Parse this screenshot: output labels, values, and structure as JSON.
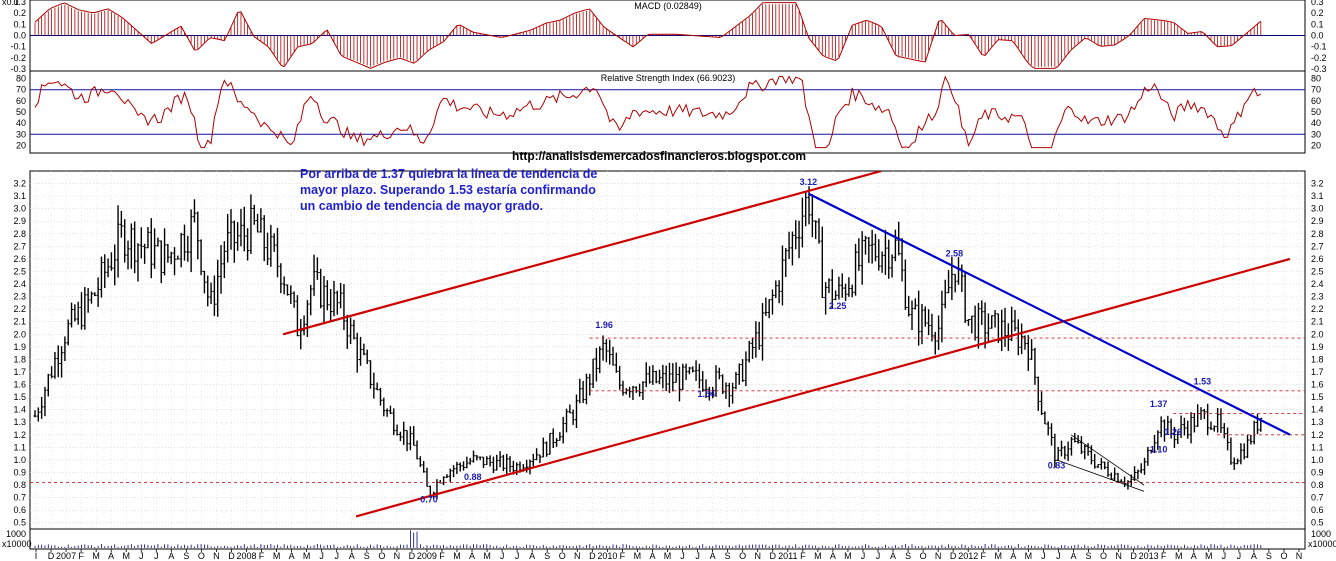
{
  "chart_data": [
    {
      "type": "bar",
      "title": "MACD (0.02849)",
      "y_ticks": [
        "0.3",
        "0.2",
        "0.1",
        "0.0",
        "-0.1",
        "-0.2",
        "-0.3"
      ],
      "ylim": [
        -0.3,
        0.3
      ],
      "zero_line": 0.0,
      "color": "#b00000"
    },
    {
      "type": "line",
      "title": "Relative Strength Index (66.9023)",
      "y_ticks": [
        "80",
        "70",
        "60",
        "50",
        "40",
        "30",
        "20"
      ],
      "ylim": [
        15,
        85
      ],
      "reference_lines": [
        70,
        30
      ],
      "reference_line_color": "#1010a0",
      "color": "#b00000"
    },
    {
      "type": "line",
      "subtype": "price bars",
      "ylim": [
        0.45,
        3.3
      ],
      "y_ticks": [
        "3.2",
        "3.1",
        "3.0",
        "2.9",
        "2.8",
        "2.7",
        "2.6",
        "2.5",
        "2.4",
        "2.3",
        "2.2",
        "2.1",
        "2.0",
        "1.9",
        "1.8",
        "1.7",
        "1.6",
        "1.5",
        "1.4",
        "1.3",
        "1.2",
        "1.1",
        "1.0",
        "0.9",
        "0.8",
        "0.7",
        "0.6",
        "0.5"
      ],
      "anchor_points": [
        {
          "x": "2006-09",
          "y": 1.35
        },
        {
          "x": "2006-11",
          "y": 2.0
        },
        {
          "x": "2007-01",
          "y": 2.3
        },
        {
          "x": "2007-03",
          "y": 2.8
        },
        {
          "x": "2007-06",
          "y": 2.6
        },
        {
          "x": "2007-08",
          "y": 2.9
        },
        {
          "x": "2007-09",
          "y": 2.2
        },
        {
          "x": "2007-10",
          "y": 2.7
        },
        {
          "x": "2007-12",
          "y": 2.85
        },
        {
          "x": "2008-02",
          "y": 2.5
        },
        {
          "x": "2008-03",
          "y": 2.05
        },
        {
          "x": "2008-04",
          "y": 2.4
        },
        {
          "x": "2008-06",
          "y": 2.2
        },
        {
          "x": "2008-07",
          "y": 1.9
        },
        {
          "x": "2008-09",
          "y": 1.4
        },
        {
          "x": "2008-11",
          "y": 1.1
        },
        {
          "x": "2008-12",
          "y": 0.72
        },
        {
          "x": "2009-01",
          "y": 0.9
        },
        {
          "x": "2009-03",
          "y": 1.0
        },
        {
          "x": "2009-06",
          "y": 0.95
        },
        {
          "x": "2009-08",
          "y": 1.1
        },
        {
          "x": "2009-10",
          "y": 1.4
        },
        {
          "x": "2009-12",
          "y": 1.9
        },
        {
          "x": "2010-01",
          "y": 1.6
        },
        {
          "x": "2010-06",
          "y": 1.65
        },
        {
          "x": "2010-09",
          "y": 1.6
        },
        {
          "x": "2010-11",
          "y": 2.1
        },
        {
          "x": "2011-01",
          "y": 2.8
        },
        {
          "x": "2011-02",
          "y": 3.1
        },
        {
          "x": "2011-03",
          "y": 2.4
        },
        {
          "x": "2011-04",
          "y": 2.3
        },
        {
          "x": "2011-06",
          "y": 2.65
        },
        {
          "x": "2011-08",
          "y": 2.7
        },
        {
          "x": "2011-09",
          "y": 2.15
        },
        {
          "x": "2011-11",
          "y": 2.05
        },
        {
          "x": "2011-12",
          "y": 2.58
        },
        {
          "x": "2012-01",
          "y": 2.1
        },
        {
          "x": "2012-03",
          "y": 2.05
        },
        {
          "x": "2012-05",
          "y": 1.95
        },
        {
          "x": "2012-06",
          "y": 1.4
        },
        {
          "x": "2012-07",
          "y": 1.0
        },
        {
          "x": "2012-08",
          "y": 1.15
        },
        {
          "x": "2012-10",
          "y": 0.95
        },
        {
          "x": "2012-12",
          "y": 0.82
        },
        {
          "x": "2013-01",
          "y": 0.95
        },
        {
          "x": "2013-02",
          "y": 1.3
        },
        {
          "x": "2013-03",
          "y": 1.2
        },
        {
          "x": "2013-05",
          "y": 1.35
        },
        {
          "x": "2013-06",
          "y": 1.3
        },
        {
          "x": "2013-07",
          "y": 1.0
        },
        {
          "x": "2013-08",
          "y": 1.1
        },
        {
          "x": "2013-09",
          "y": 1.35
        }
      ],
      "annotations": [
        "3.12",
        "2.58",
        "2.25",
        "1.96",
        "1.54",
        "1.53",
        "1.37",
        "1.26",
        "1.10",
        "0.83",
        "0.88",
        "0.70"
      ],
      "horizontal_levels": [
        1.97,
        1.55,
        1.37,
        1.2,
        0.82
      ],
      "trendlines": [
        {
          "color": "#cc0000",
          "from": {
            "x": "2008-02",
            "y": 2.0
          },
          "to": {
            "x": "2011-07",
            "y": 3.3
          }
        },
        {
          "color": "#cc0000",
          "from": {
            "x": "2008-07",
            "y": 0.55
          },
          "to": {
            "x": "2013-11",
            "y": 2.6
          }
        },
        {
          "color": "#0000cc",
          "from": {
            "x": "2011-02",
            "y": 3.12
          },
          "to": {
            "x": "2013-11",
            "y": 1.2
          }
        },
        {
          "color": "#000000",
          "from": {
            "x": "2012-08",
            "y": 1.2
          },
          "to": {
            "x": "2013-01",
            "y": 0.8
          }
        },
        {
          "color": "#000000",
          "from": {
            "x": "2012-07",
            "y": 1.0
          },
          "to": {
            "x": "2013-01",
            "y": 0.75
          }
        }
      ]
    },
    {
      "type": "bar",
      "title": "",
      "y_ticks": [
        "1000",
        "0"
      ],
      "color": "#000080"
    }
  ],
  "x_axis": {
    "labels": [
      "I",
      "D",
      "2007",
      "F",
      "M",
      "A",
      "M",
      "J",
      "J",
      "A",
      "S",
      "O",
      "N",
      "D",
      "2008",
      "F",
      "M",
      "A",
      "M",
      "J",
      "J",
      "A",
      "S",
      "O",
      "N",
      "D",
      "2009",
      "F",
      "M",
      "A",
      "M",
      "J",
      "J",
      "A",
      "S",
      "O",
      "N",
      "D",
      "2010",
      "F",
      "M",
      "A",
      "M",
      "J",
      "J",
      "A",
      "S",
      "O",
      "N",
      "D",
      "2011",
      "F",
      "M",
      "A",
      "M",
      "J",
      "J",
      "A",
      "S",
      "O",
      "N",
      "D",
      "2012",
      "F",
      "M",
      "A",
      "M",
      "J",
      "J",
      "A",
      "S",
      "O",
      "N",
      "D",
      "2013",
      "F",
      "M",
      "A",
      "M",
      "J",
      "J",
      "A",
      "S",
      "O",
      "N"
    ]
  },
  "url_text": "http://analisisdemercadosfinancieros.blogspot.com",
  "note_text": "Por arriba de 1.37 quiebra la línea de tendencia de mayor plazo. Superando 1.53 estaría confirmando un cambio de tendencia de mayor grado.",
  "corner_labels": {
    "macd_tl": "x0.1",
    "vol_tl": "x10000",
    "vol_tr": "x10000"
  }
}
